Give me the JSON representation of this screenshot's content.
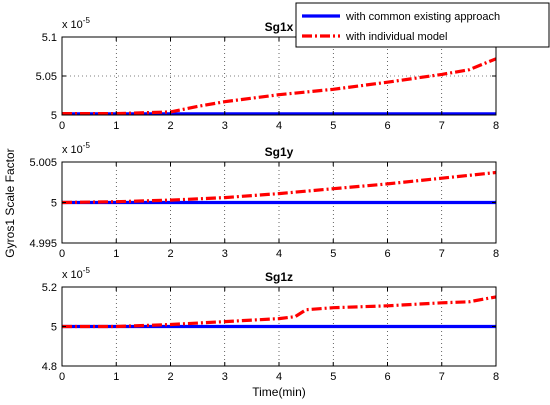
{
  "chart_data": [
    {
      "type": "line",
      "title": "Sg1x",
      "exponent_label": "x 10",
      "exponent_power": "-5",
      "xlim": [
        0,
        8
      ],
      "ylim": [
        5.0,
        5.1
      ],
      "xticks": [
        "0",
        "1",
        "2",
        "3",
        "4",
        "5",
        "6",
        "7",
        "8"
      ],
      "yticks": [
        "5",
        "5.05",
        "5.1"
      ],
      "yticks_values": [
        5.0,
        5.05,
        5.1
      ],
      "grid": true,
      "series": [
        {
          "name": "with common existing approach",
          "color": "#0000ff",
          "style": "solid",
          "x": [
            0,
            8
          ],
          "y": [
            5.0015,
            5.0015
          ]
        },
        {
          "name": "with individual model",
          "color": "#ff0000",
          "style": "dashdot",
          "x": [
            0,
            1,
            2,
            2.5,
            3,
            4,
            5,
            6,
            7,
            7.5,
            8
          ],
          "y": [
            5.0018,
            5.0018,
            5.004,
            5.011,
            5.017,
            5.026,
            5.033,
            5.042,
            5.052,
            5.058,
            5.072
          ]
        }
      ]
    },
    {
      "type": "line",
      "title": "Sg1y",
      "exponent_label": "x 10",
      "exponent_power": "-5",
      "xlim": [
        0,
        8
      ],
      "ylim": [
        4.995,
        5.005
      ],
      "xticks": [
        "0",
        "1",
        "2",
        "3",
        "4",
        "5",
        "6",
        "7",
        "8"
      ],
      "yticks": [
        "4.995",
        "5",
        "5.005"
      ],
      "yticks_values": [
        4.995,
        5.0,
        5.005
      ],
      "grid": true,
      "series": [
        {
          "name": "with common existing approach",
          "color": "#0000ff",
          "style": "solid",
          "x": [
            0,
            8
          ],
          "y": [
            5.0,
            5.0
          ]
        },
        {
          "name": "with individual model",
          "color": "#ff0000",
          "style": "dashdot",
          "x": [
            0,
            1,
            2,
            3,
            4,
            5,
            6,
            7,
            8
          ],
          "y": [
            5.0,
            5.0001,
            5.0003,
            5.0006,
            5.0011,
            5.0017,
            5.0023,
            5.003,
            5.0037
          ]
        }
      ]
    },
    {
      "type": "line",
      "title": "Sg1z",
      "exponent_label": "x 10",
      "exponent_power": "-5",
      "xlim": [
        0,
        8
      ],
      "ylim": [
        4.8,
        5.2
      ],
      "xticks": [
        "0",
        "1",
        "2",
        "3",
        "4",
        "5",
        "6",
        "7",
        "8"
      ],
      "yticks": [
        "4.8",
        "5",
        "5.2"
      ],
      "yticks_values": [
        4.8,
        5.0,
        5.2
      ],
      "grid": true,
      "xlabel": "Time(min)",
      "series": [
        {
          "name": "with common existing approach",
          "color": "#0000ff",
          "style": "solid",
          "x": [
            0,
            8
          ],
          "y": [
            5.0,
            5.0
          ]
        },
        {
          "name": "with individual model",
          "color": "#ff0000",
          "style": "dashdot",
          "x": [
            0,
            1,
            2,
            3,
            4,
            4.3,
            4.5,
            5,
            6,
            7,
            7.5,
            8
          ],
          "y": [
            5.0,
            5.0,
            5.01,
            5.025,
            5.04,
            5.05,
            5.085,
            5.095,
            5.105,
            5.12,
            5.125,
            5.15
          ]
        }
      ]
    }
  ],
  "ylabel": "Gyros1 Scale Factor",
  "legend": {
    "position": "top-right",
    "entries": [
      {
        "label": "with common existing approach",
        "color": "#0000ff",
        "style": "solid"
      },
      {
        "label": "with individual model",
        "color": "#ff0000",
        "style": "dashdot"
      }
    ]
  }
}
